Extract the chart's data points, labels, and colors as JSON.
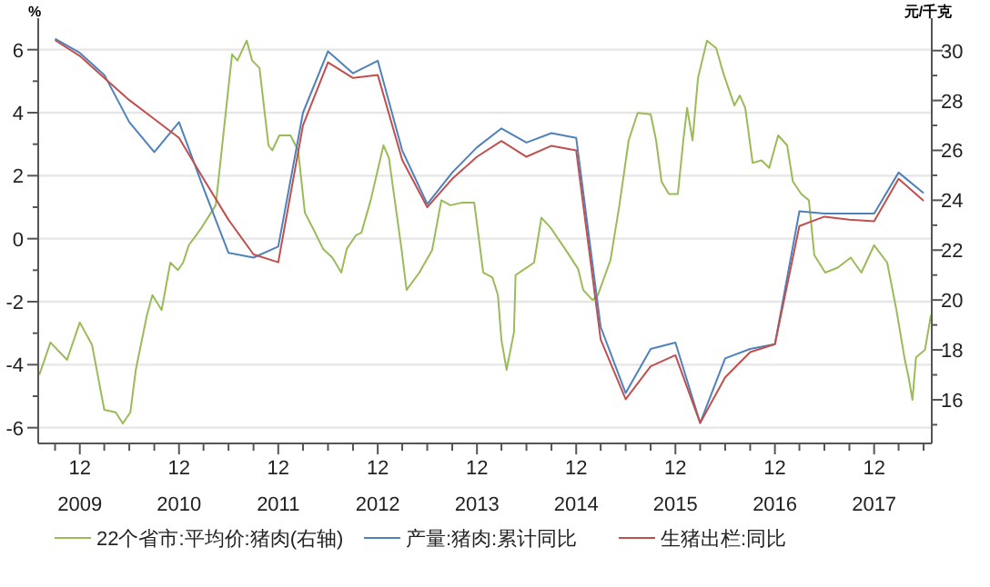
{
  "chart_data": {
    "type": "line",
    "ylabel": "%",
    "y2label": "元/千克",
    "xlim": [
      "2009-07",
      "2018-07"
    ],
    "xticks": [
      {
        "value": "2009-09",
        "label": null
      },
      {
        "value": "2009-12",
        "label": "12\n2009"
      },
      {
        "value": "2010-03",
        "label": null
      },
      {
        "value": "2010-06",
        "label": null
      },
      {
        "value": "2010-09",
        "label": null
      },
      {
        "value": "2010-12",
        "label": "12\n2010"
      },
      {
        "value": "2011-03",
        "label": null
      },
      {
        "value": "2011-06",
        "label": null
      },
      {
        "value": "2011-09",
        "label": null
      },
      {
        "value": "2011-12",
        "label": "12\n2011"
      },
      {
        "value": "2012-03",
        "label": null
      },
      {
        "value": "2012-06",
        "label": null
      },
      {
        "value": "2012-09",
        "label": null
      },
      {
        "value": "2012-12",
        "label": "12\n2012"
      },
      {
        "value": "2013-03",
        "label": null
      },
      {
        "value": "2013-06",
        "label": null
      },
      {
        "value": "2013-09",
        "label": null
      },
      {
        "value": "2013-12",
        "label": "12\n2013"
      },
      {
        "value": "2014-03",
        "label": null
      },
      {
        "value": "2014-06",
        "label": null
      },
      {
        "value": "2014-09",
        "label": null
      },
      {
        "value": "2014-12",
        "label": "12\n2014"
      },
      {
        "value": "2015-03",
        "label": null
      },
      {
        "value": "2015-06",
        "label": null
      },
      {
        "value": "2015-09",
        "label": null
      },
      {
        "value": "2015-12",
        "label": "12\n2015"
      },
      {
        "value": "2016-03",
        "label": null
      },
      {
        "value": "2016-06",
        "label": null
      },
      {
        "value": "2016-09",
        "label": null
      },
      {
        "value": "2016-12",
        "label": "12\n2016"
      },
      {
        "value": "2017-03",
        "label": null
      },
      {
        "value": "2017-06",
        "label": null
      },
      {
        "value": "2017-09",
        "label": null
      },
      {
        "value": "2017-12",
        "label": "12\n2017"
      },
      {
        "value": "2018-03",
        "label": null
      },
      {
        "value": "2018-06",
        "label": null
      }
    ],
    "ylim": [
      -6.5,
      7
    ],
    "yticks": [
      -6,
      {
        "value": -5,
        "label": null
      },
      -4,
      {
        "value": -3,
        "label": null
      },
      -2,
      {
        "value": -1,
        "label": null
      },
      0,
      {
        "value": 1,
        "label": null
      },
      2,
      {
        "value": 3,
        "label": null
      },
      4,
      {
        "value": 5,
        "label": null
      },
      6
    ],
    "y2lim": [
      14.25,
      31.3
    ],
    "y2ticks": [
      {
        "value": 15,
        "label": null
      },
      16,
      {
        "value": 17,
        "label": null
      },
      18,
      {
        "value": 19,
        "label": null
      },
      20,
      {
        "value": 21,
        "label": null
      },
      22,
      {
        "value": 23,
        "label": null
      },
      24,
      {
        "value": 25,
        "label": null
      },
      26,
      {
        "value": 27,
        "label": null
      },
      28,
      {
        "value": 29,
        "label": null
      },
      30
    ],
    "grid": "y",
    "legend": "bottom",
    "marker": "none",
    "line_style": "solid",
    "series": [
      {
        "name": "22个省市:平均价:猪肉(右轴)",
        "color": "#9bbb59",
        "axis": "y2",
        "x": [
          "2009-07-05",
          "2009-08-15",
          "2009-10-15",
          "2009-12-01",
          "2010-01-15",
          "2010-03-01",
          "2010-04-12",
          "2010-05-08",
          "2010-06-05",
          "2010-06-25",
          "2010-08-05",
          "2010-08-25",
          "2010-09-28",
          "2010-10-30",
          "2010-11-27",
          "2010-12-16",
          "2011-01-06",
          "2011-02-02",
          "2011-02-22",
          "2011-04-15",
          "2011-06-14",
          "2011-07-04",
          "2011-08-07",
          "2011-08-27",
          "2011-09-23",
          "2011-10-26",
          "2011-11-09",
          "2011-12-05",
          "2012-01-15",
          "2012-02-12",
          "2012-03-08",
          "2012-04-10",
          "2012-05-14",
          "2012-06-17",
          "2012-07-20",
          "2012-08-09",
          "2012-09-12",
          "2012-10-02",
          "2012-11-05",
          "2012-12-22",
          "2013-01-11",
          "2013-02-27",
          "2013-03-17",
          "2013-05-03",
          "2013-06-19",
          "2013-07-23",
          "2013-08-25",
          "2013-10-05",
          "2013-11-21",
          "2013-12-24",
          "2014-01-27",
          "2014-02-16",
          "2014-03-01",
          "2014-03-20",
          "2014-04-16",
          "2014-04-22",
          "2014-05-26",
          "2014-06-29",
          "2014-07-26",
          "2014-08-29",
          "2014-10-21",
          "2014-12-08",
          "2014-12-27",
          "2015-01-30",
          "2015-02-19",
          "2015-04-06",
          "2015-05-09",
          "2015-06-12",
          "2015-07-15",
          "2015-09-01",
          "2015-09-21",
          "2015-10-11",
          "2015-11-07",
          "2015-12-10",
          "2015-12-30",
          "2016-01-13",
          "2016-02-02",
          "2016-02-22",
          "2016-03-26",
          "2016-04-29",
          "2016-05-25",
          "2016-07-05",
          "2016-07-25",
          "2016-08-14",
          "2016-09-10",
          "2016-10-13",
          "2016-11-10",
          "2016-12-13",
          "2017-01-15",
          "2017-02-05",
          "2017-03-08",
          "2017-04-05",
          "2017-04-25",
          "2017-06-04",
          "2017-07-20",
          "2017-09-06",
          "2017-10-15",
          "2017-12-01",
          "2018-01-18",
          "2018-02-21",
          "2018-03-24",
          "2018-04-06",
          "2018-04-21",
          "2018-05-04",
          "2018-06-06",
          "2018-06-28"
        ],
        "values": [
          17.0,
          18.3,
          17.6,
          19.1,
          18.2,
          15.6,
          15.5,
          15.05,
          15.5,
          17.2,
          19.4,
          20.2,
          19.6,
          21.5,
          21.2,
          21.5,
          22.2,
          22.6,
          22.9,
          23.8,
          29.85,
          29.6,
          30.4,
          29.6,
          29.3,
          26.2,
          26.0,
          26.6,
          26.6,
          26.0,
          23.5,
          22.8,
          22.05,
          21.7,
          21.1,
          22.05,
          22.6,
          22.7,
          24.0,
          26.2,
          25.7,
          22.0,
          20.4,
          21.1,
          22.0,
          24.0,
          23.8,
          23.9,
          23.9,
          21.1,
          20.9,
          20.2,
          18.4,
          17.2,
          18.7,
          21.0,
          21.25,
          21.5,
          23.3,
          22.9,
          22.05,
          21.25,
          20.4,
          20.0,
          20.2,
          21.6,
          23.8,
          26.4,
          27.5,
          27.45,
          26.4,
          24.75,
          24.25,
          24.25,
          26.4,
          27.7,
          26.4,
          28.9,
          30.4,
          30.1,
          29.1,
          27.8,
          28.2,
          27.7,
          25.5,
          25.6,
          25.3,
          26.6,
          26.2,
          24.75,
          24.25,
          24.0,
          21.8,
          21.1,
          21.3,
          21.7,
          21.1,
          22.2,
          21.5,
          19.6,
          17.6,
          16.95,
          16.0,
          17.7,
          18.0,
          19.4
        ]
      },
      {
        "name": "产量:猪肉:累计同比",
        "color": "#4f81bd",
        "x": [
          "2009-09",
          "2009-12",
          "2010-03",
          "2010-06",
          "2010-09",
          "2010-12",
          "2011-03",
          "2011-06",
          "2011-09",
          "2011-12",
          "2012-03",
          "2012-06",
          "2012-09",
          "2012-12",
          "2013-03",
          "2013-06",
          "2013-09",
          "2013-12",
          "2014-03",
          "2014-06",
          "2014-09",
          "2014-12",
          "2015-03",
          "2015-06",
          "2015-09",
          "2015-12",
          "2016-03",
          "2016-06",
          "2016-09",
          "2016-12",
          "2017-03",
          "2017-06",
          "2017-09",
          "2017-12",
          "2018-03",
          "2018-06"
        ],
        "values": [
          6.35,
          5.9,
          5.2,
          3.7,
          2.75,
          3.7,
          1.6,
          -0.45,
          -0.6,
          -0.25,
          4.0,
          5.95,
          5.25,
          5.65,
          2.8,
          1.1,
          2.1,
          2.9,
          3.5,
          3.05,
          3.35,
          3.2,
          -2.8,
          -4.9,
          -3.5,
          -3.3,
          -5.85,
          -3.8,
          -3.5,
          -3.35,
          0.87,
          0.8,
          0.8,
          0.8,
          2.1,
          1.45
        ]
      },
      {
        "name": "生猪出栏:同比",
        "color": "#c0504d",
        "x": [
          "2009-09",
          "2009-12",
          "2010-03",
          "2010-06",
          "2010-09",
          "2010-12",
          "2011-03",
          "2011-06",
          "2011-09",
          "2011-12",
          "2012-03",
          "2012-06",
          "2012-09",
          "2012-12",
          "2013-03",
          "2013-06",
          "2013-09",
          "2013-12",
          "2014-03",
          "2014-06",
          "2014-09",
          "2014-12",
          "2015-03",
          "2015-06",
          "2015-09",
          "2015-12",
          "2016-03",
          "2016-06",
          "2016-09",
          "2016-12",
          "2017-03",
          "2017-06",
          "2017-09",
          "2017-12",
          "2018-03",
          "2018-06"
        ],
        "values": [
          6.3,
          5.8,
          5.1,
          4.4,
          3.8,
          3.2,
          1.9,
          0.6,
          -0.5,
          -0.75,
          3.6,
          5.6,
          5.1,
          5.2,
          2.5,
          1.0,
          1.9,
          2.6,
          3.1,
          2.6,
          2.95,
          2.8,
          -3.2,
          -5.1,
          -4.05,
          -3.7,
          -5.85,
          -4.4,
          -3.6,
          -3.35,
          0.4,
          0.7,
          0.6,
          0.55,
          1.9,
          1.2
        ]
      }
    ]
  }
}
